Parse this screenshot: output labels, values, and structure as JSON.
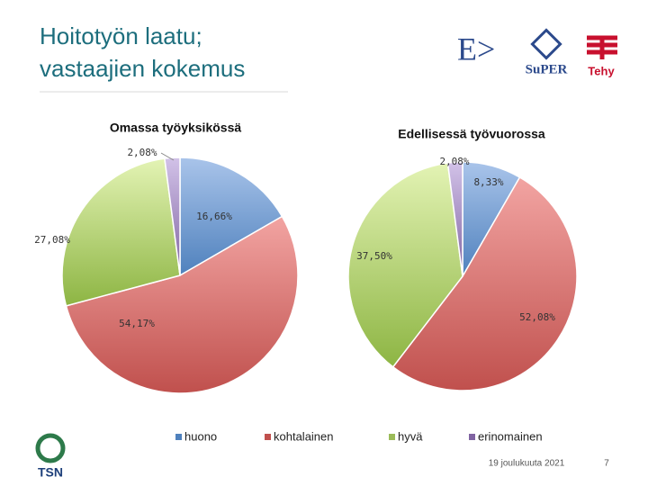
{
  "slide": {
    "title_lines": [
      "Hoitotyön laatu;",
      "vastaajien kokemus"
    ],
    "date": "19 joulukuuta 2021",
    "page_number": "7",
    "logos": [
      "E>",
      "SuPER",
      "Tehy",
      "TSN"
    ]
  },
  "legend": {
    "labels": [
      "huono",
      "kohtalainen",
      "hyvä",
      "erinomainen"
    ],
    "colors": [
      "#4f81bd",
      "#c0504d",
      "#9bbb59",
      "#8064a2"
    ]
  },
  "chart_data": [
    {
      "type": "pie",
      "title": "Omassa työyksikössä",
      "values": [
        16.66,
        54.17,
        27.08,
        2.08
      ],
      "value_labels": [
        "16,66%",
        "54,17%",
        "27,08%",
        "2,08%"
      ]
    },
    {
      "type": "pie",
      "title": "Edellisessä työvuorossa",
      "values": [
        8.33,
        52.08,
        37.5,
        2.08
      ],
      "value_labels": [
        "8,33%",
        "52,08%",
        "37,50%",
        "2,08%"
      ]
    }
  ]
}
